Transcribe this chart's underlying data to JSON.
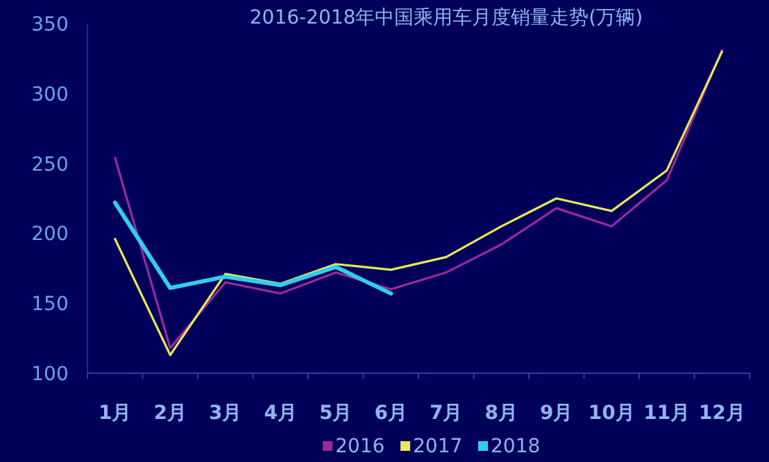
{
  "chart_data": {
    "type": "line",
    "title": "2016-2018年中国乘用车月度销量走势(万辆)",
    "categories": [
      "1月",
      "2月",
      "3月",
      "4月",
      "5月",
      "6月",
      "7月",
      "8月",
      "9月",
      "10月",
      "11月",
      "12月"
    ],
    "series": [
      {
        "name": "2016",
        "color": "#9b2a9b",
        "values": [
          254,
          118,
          165,
          157,
          172,
          160,
          172,
          192,
          218,
          205,
          238,
          331
        ]
      },
      {
        "name": "2017",
        "color": "#e8e85a",
        "values": [
          196,
          113,
          171,
          164,
          178,
          174,
          183,
          205,
          225,
          216,
          245,
          330
        ]
      },
      {
        "name": "2018",
        "color": "#33ccf0",
        "values": [
          222,
          161,
          169,
          163,
          176,
          157,
          null,
          null,
          null,
          null,
          null,
          null
        ]
      }
    ],
    "ylim": [
      100,
      350
    ],
    "yticks": [
      100,
      150,
      200,
      250,
      300,
      350
    ],
    "grid": false,
    "legend": "bottom",
    "marker": "none",
    "line_style": "solid"
  }
}
